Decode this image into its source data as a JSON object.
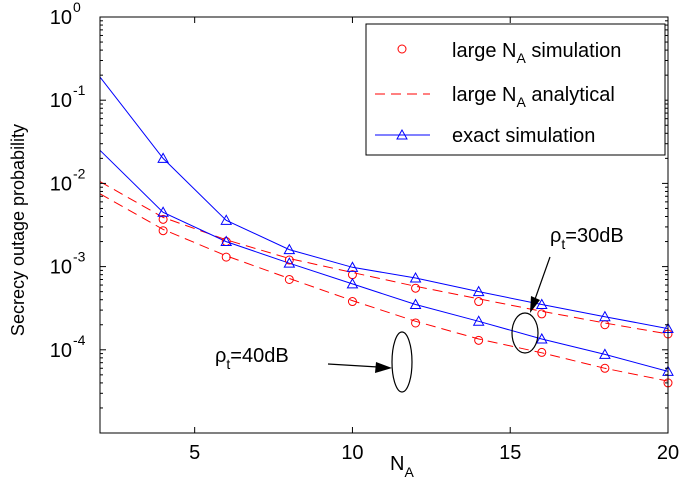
{
  "chart_data": {
    "type": "line",
    "title": "",
    "xlabel": {
      "base": "N",
      "sub": "A"
    },
    "ylabel": "Secrecy outage probability",
    "xlim": [
      2,
      20
    ],
    "ylim": [
      1e-05,
      1
    ],
    "yscale": "log",
    "grid": false,
    "legend_position": "top-right",
    "x_ticks": [
      5,
      10,
      15,
      20
    ],
    "x_tick_labels": [
      "5",
      "10",
      "15",
      "20"
    ],
    "y_ticks": [
      1,
      0.1,
      0.01,
      0.001,
      0.0001
    ],
    "y_tick_labels": [
      {
        "base": "10",
        "exp": "0"
      },
      {
        "base": "10",
        "exp": "-1"
      },
      {
        "base": "10",
        "exp": "-2"
      },
      {
        "base": "10",
        "exp": "-3"
      },
      {
        "base": "10",
        "exp": "-4"
      }
    ],
    "legend": [
      {
        "text_before": "large N",
        "sub": "A",
        "text_after": " simulation",
        "style": "circle",
        "color": "#ff0000"
      },
      {
        "text_before": "large N",
        "sub": "A",
        "text_after": " analytical",
        "style": "dashed",
        "color": "#ff0000"
      },
      {
        "text_before": "exact simulation",
        "sub": "",
        "text_after": "",
        "style": "triangle-line",
        "color": "#0000ff"
      }
    ],
    "annotations": [
      {
        "rho": "ρ",
        "sub": "t",
        "text": "=30dB"
      },
      {
        "rho": "ρ",
        "sub": "t",
        "text": "=40dB"
      }
    ],
    "series": [
      {
        "group": "30dB",
        "kind": "large-analytical",
        "color": "#ff0000",
        "x": [
          2,
          4,
          6,
          8,
          10,
          12,
          14,
          16,
          18,
          20
        ],
        "y": [
          0.0105,
          0.0039,
          0.0021,
          0.00125,
          0.00085,
          0.00058,
          0.00041,
          0.00029,
          0.00021,
          0.000155
        ]
      },
      {
        "group": "30dB",
        "kind": "large-simulation",
        "color": "#ff0000",
        "x": [
          4,
          6,
          8,
          10,
          12,
          14,
          16,
          18,
          20
        ],
        "y": [
          0.0037,
          0.002,
          0.0012,
          0.0008,
          0.00055,
          0.00038,
          0.00027,
          0.0002,
          0.000155
        ]
      },
      {
        "group": "30dB",
        "kind": "exact",
        "color": "#0000ff",
        "x": [
          2,
          4,
          6,
          8,
          10,
          12,
          14,
          16,
          18,
          20
        ],
        "y": [
          0.19,
          0.02,
          0.0036,
          0.0016,
          0.00098,
          0.00073,
          0.0005,
          0.00035,
          0.00025,
          0.00018
        ]
      },
      {
        "group": "40dB",
        "kind": "large-analytical",
        "color": "#ff0000",
        "x": [
          2,
          4,
          6,
          8,
          10,
          12,
          14,
          16,
          18,
          20
        ],
        "y": [
          0.0075,
          0.0028,
          0.00135,
          0.00072,
          0.00039,
          0.00022,
          0.000135,
          9.2e-05,
          6e-05,
          4.2e-05
        ]
      },
      {
        "group": "40dB",
        "kind": "large-simulation",
        "color": "#ff0000",
        "x": [
          4,
          6,
          8,
          10,
          12,
          14,
          16,
          18,
          20
        ],
        "y": [
          0.0027,
          0.0013,
          0.0007,
          0.00038,
          0.00021,
          0.00013,
          9.3e-05,
          6e-05,
          4e-05
        ]
      },
      {
        "group": "40dB",
        "kind": "exact",
        "color": "#0000ff",
        "x": [
          2,
          4,
          6,
          8,
          10,
          12,
          14,
          16,
          18,
          20
        ],
        "y": [
          0.025,
          0.0045,
          0.002,
          0.0011,
          0.00062,
          0.00035,
          0.00022,
          0.000135,
          8.8e-05,
          5.5e-05
        ]
      }
    ]
  }
}
